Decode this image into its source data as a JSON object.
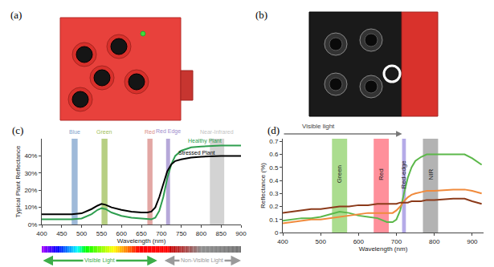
{
  "photos": [
    {
      "label": "(a)"
    },
    {
      "label": "(b)"
    }
  ],
  "chart_data": [
    {
      "type": "line",
      "label": "(c)",
      "xlabel": "Wavelength (nm)",
      "ylabel": "Typical Plant Reflectance",
      "xlim": [
        400,
        900
      ],
      "xticks": [
        400,
        450,
        500,
        550,
        600,
        650,
        700,
        750,
        800,
        850,
        900
      ],
      "ylim": [
        0,
        50
      ],
      "yticks": [
        {
          "value": 0,
          "label": "0%"
        },
        {
          "value": 10,
          "label": "10%"
        },
        {
          "value": 20,
          "label": "20%"
        },
        {
          "value": 30,
          "label": "30%"
        },
        {
          "value": 40,
          "label": "40%"
        }
      ],
      "grid": false,
      "bands": [
        {
          "name": "Blue",
          "from": 475,
          "to": 490,
          "color": "#7fa3cc"
        },
        {
          "name": "Green",
          "from": 550,
          "to": 565,
          "color": "#9fbf5a"
        },
        {
          "name": "Red",
          "from": 665,
          "to": 678,
          "color": "#d98a86"
        },
        {
          "name": "Red Edge",
          "from": 712,
          "to": 722,
          "color": "#9d8bcc"
        },
        {
          "name": "Near-Infrared",
          "from": 822,
          "to": 858,
          "color": "#c4c4c4"
        }
      ],
      "series": [
        {
          "color": "#2e9e4f",
          "x": [
            400,
            425,
            450,
            475,
            500,
            525,
            540,
            550,
            560,
            575,
            600,
            625,
            650,
            665,
            675,
            685,
            695,
            705,
            715,
            725,
            735,
            750,
            775,
            800,
            850,
            900
          ],
          "values": [
            3,
            3,
            3,
            3,
            3.5,
            6,
            8.5,
            9.5,
            9,
            7,
            5,
            4,
            3.5,
            3,
            3,
            4,
            8,
            16,
            27,
            35,
            40,
            43,
            45,
            45.5,
            46,
            46
          ]
        },
        {
          "color": "#000000",
          "x": [
            400,
            425,
            450,
            475,
            500,
            525,
            540,
            550,
            560,
            575,
            600,
            625,
            650,
            665,
            675,
            685,
            695,
            705,
            715,
            725,
            735,
            750,
            775,
            800,
            850,
            900
          ],
          "values": [
            6,
            6,
            6,
            6,
            6.5,
            9,
            11,
            12,
            11.5,
            10,
            8.5,
            7.5,
            7,
            7,
            7.5,
            10,
            16,
            24,
            31,
            35,
            37,
            38,
            39,
            39.5,
            40,
            40
          ]
        }
      ],
      "annotations": [
        {
          "text": "Healthy Plant",
          "x": 810,
          "y": 48.5,
          "color": "#2e9e4f"
        },
        {
          "text": "Stressed Plant",
          "x": 790,
          "y": 42,
          "color": "#000000"
        }
      ],
      "spectrum_bar": {
        "from": 400,
        "to": 900
      },
      "light_ranges": [
        {
          "text": "Visible Light",
          "from": 400,
          "to": 690,
          "color": "#3cae49"
        },
        {
          "text": "Non-Visible Light",
          "from": 705,
          "to": 900,
          "color": "#9a9a9a"
        }
      ]
    },
    {
      "type": "line",
      "label": "(d)",
      "xlabel": "Wavelength (nm)",
      "ylabel": "Reflectance (%)",
      "xlim": [
        400,
        930
      ],
      "xticks": [
        400,
        500,
        600,
        700,
        800,
        900
      ],
      "ylim": [
        0,
        0.72
      ],
      "yticks": [
        0,
        0.1,
        0.2,
        0.3,
        0.4,
        0.5,
        0.6,
        0.7
      ],
      "grid": false,
      "bands": [
        {
          "name": "Green",
          "from": 530,
          "to": 570,
          "color": "#8fd16a"
        },
        {
          "name": "Red",
          "from": 640,
          "to": 680,
          "color": "#ff6b7a"
        },
        {
          "name": "Red-edge",
          "from": 715,
          "to": 725,
          "color": "#9c8fe0"
        },
        {
          "name": "NIR",
          "from": 770,
          "to": 810,
          "color": "#9a9a9a"
        }
      ],
      "series": [
        {
          "color": "#5cb84a",
          "x": [
            400,
            425,
            450,
            475,
            500,
            525,
            550,
            575,
            600,
            625,
            650,
            675,
            690,
            700,
            710,
            720,
            730,
            740,
            750,
            765,
            780,
            800,
            850,
            880,
            900,
            925
          ],
          "values": [
            0.09,
            0.1,
            0.11,
            0.11,
            0.12,
            0.14,
            0.16,
            0.15,
            0.13,
            0.12,
            0.11,
            0.08,
            0.08,
            0.1,
            0.17,
            0.3,
            0.42,
            0.5,
            0.55,
            0.58,
            0.6,
            0.6,
            0.6,
            0.6,
            0.57,
            0.52
          ]
        },
        {
          "color": "#f08a3c",
          "x": [
            400,
            425,
            450,
            475,
            500,
            525,
            550,
            575,
            600,
            625,
            650,
            675,
            690,
            700,
            710,
            720,
            730,
            740,
            750,
            765,
            780,
            800,
            850,
            880,
            900,
            925
          ],
          "values": [
            0.07,
            0.08,
            0.09,
            0.1,
            0.1,
            0.11,
            0.12,
            0.13,
            0.14,
            0.15,
            0.15,
            0.15,
            0.15,
            0.17,
            0.2,
            0.24,
            0.27,
            0.29,
            0.3,
            0.31,
            0.32,
            0.32,
            0.33,
            0.33,
            0.32,
            0.3
          ]
        },
        {
          "color": "#8b3a1a",
          "x": [
            400,
            425,
            450,
            475,
            500,
            525,
            550,
            575,
            600,
            625,
            650,
            675,
            690,
            700,
            710,
            720,
            730,
            740,
            750,
            765,
            780,
            800,
            850,
            880,
            900,
            925
          ],
          "values": [
            0.15,
            0.16,
            0.17,
            0.18,
            0.18,
            0.19,
            0.2,
            0.2,
            0.21,
            0.21,
            0.22,
            0.22,
            0.22,
            0.22,
            0.23,
            0.23,
            0.23,
            0.24,
            0.24,
            0.24,
            0.25,
            0.25,
            0.26,
            0.26,
            0.24,
            0.22
          ]
        }
      ],
      "arrow": {
        "text": "Visible light",
        "from": 400,
        "to": 715
      }
    }
  ]
}
